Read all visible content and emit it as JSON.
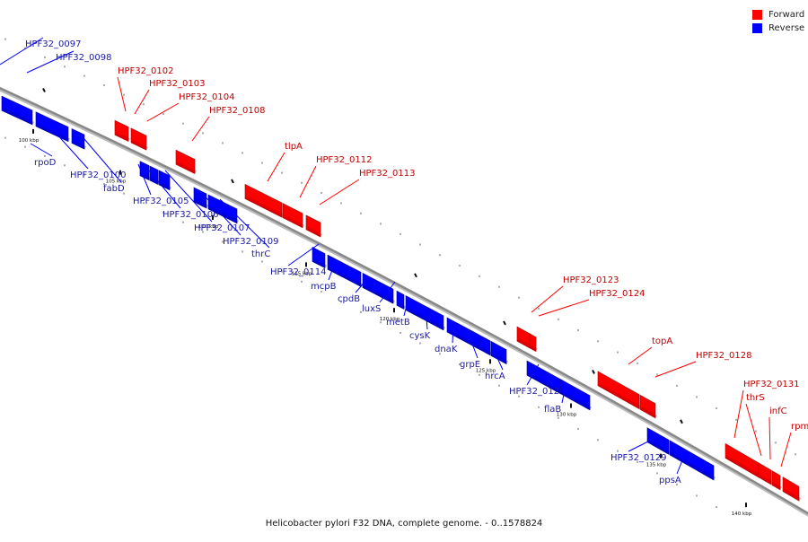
{
  "legend": [
    {
      "label": "Forward",
      "color": "#ff0000"
    },
    {
      "label": "Reverse",
      "color": "#0000ff"
    }
  ],
  "caption": "Helicobacter pylori F32 DNA, complete genome. - 0..1578824",
  "colors": {
    "forward": "#ff0000",
    "reverse": "#0000ff",
    "backbone": "#888888"
  },
  "ticks": [
    "100 kbp",
    "105 kbp",
    "110 kbp",
    "115 kbp",
    "120 kbp",
    "125 kbp",
    "130 kbp",
    "135 kbp",
    "140 kbp"
  ],
  "genes": [
    {
      "label": "HPF32_0097",
      "strand": "reverse"
    },
    {
      "label": "HPF32_0098",
      "strand": "reverse"
    },
    {
      "label": "rpoD",
      "strand": "reverse"
    },
    {
      "label": "HPF32_0100",
      "strand": "reverse"
    },
    {
      "label": "fabD",
      "strand": "reverse"
    },
    {
      "label": "HPF32_0102",
      "strand": "forward"
    },
    {
      "label": "HPF32_0103",
      "strand": "forward"
    },
    {
      "label": "HPF32_0104",
      "strand": "forward"
    },
    {
      "label": "HPF32_0105",
      "strand": "reverse"
    },
    {
      "label": "HPF32_0106",
      "strand": "reverse"
    },
    {
      "label": "HPF32_0107",
      "strand": "reverse"
    },
    {
      "label": "HPF32_0108",
      "strand": "forward"
    },
    {
      "label": "HPF32_0109",
      "strand": "reverse"
    },
    {
      "label": "thrC",
      "strand": "reverse"
    },
    {
      "label": "tlpA",
      "strand": "forward"
    },
    {
      "label": "HPF32_0112",
      "strand": "forward"
    },
    {
      "label": "HPF32_0113",
      "strand": "forward"
    },
    {
      "label": "HPF32_0114",
      "strand": "reverse"
    },
    {
      "label": "mcpB",
      "strand": "reverse"
    },
    {
      "label": "cpdB",
      "strand": "reverse"
    },
    {
      "label": "luxS",
      "strand": "reverse"
    },
    {
      "label": "metB",
      "strand": "reverse"
    },
    {
      "label": "cysK",
      "strand": "reverse"
    },
    {
      "label": "dnaK",
      "strand": "reverse"
    },
    {
      "label": "grpE",
      "strand": "reverse"
    },
    {
      "label": "hrcA",
      "strand": "reverse"
    },
    {
      "label": "HPF32_0123",
      "strand": "forward"
    },
    {
      "label": "HPF32_0124",
      "strand": "forward"
    },
    {
      "label": "HPF32_0125",
      "strand": "reverse"
    },
    {
      "label": "flaB",
      "strand": "reverse"
    },
    {
      "label": "topA",
      "strand": "forward"
    },
    {
      "label": "HPF32_0128",
      "strand": "forward"
    },
    {
      "label": "HPF32_0129",
      "strand": "reverse"
    },
    {
      "label": "ppsA",
      "strand": "reverse"
    },
    {
      "label": "HPF32_0131",
      "strand": "forward"
    },
    {
      "label": "thrS",
      "strand": "forward"
    },
    {
      "label": "infC",
      "strand": "forward"
    },
    {
      "label": "rpmI",
      "strand": "forward"
    }
  ]
}
